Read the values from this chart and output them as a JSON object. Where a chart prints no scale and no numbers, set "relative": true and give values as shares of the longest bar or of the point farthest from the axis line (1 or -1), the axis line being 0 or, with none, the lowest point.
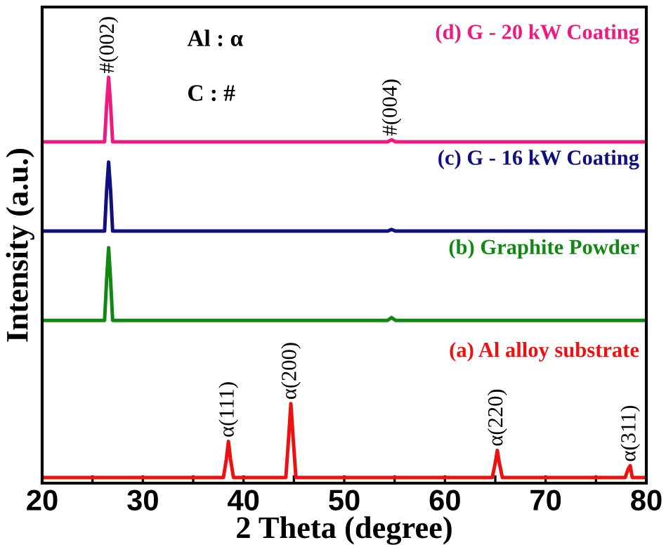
{
  "chart_data": {
    "type": "line",
    "relative": true,
    "xlabel": "2 Theta (degree)",
    "ylabel": "Intensity (a.u.)",
    "xlim": [
      20,
      80
    ],
    "xticks": [
      20,
      {
        "value": 25,
        "label": null
      },
      30,
      {
        "value": 35,
        "label": null
      },
      40,
      {
        "value": 45,
        "label": null
      },
      50,
      {
        "value": 55,
        "label": null
      },
      60,
      {
        "value": 65,
        "label": null
      },
      70,
      {
        "value": 75,
        "label": null
      },
      80
    ],
    "tick_labels": "x",
    "grid": false,
    "legend": false,
    "marker": "none",
    "line_style": "solid",
    "series": [
      {
        "name": "(a) Al alloy substrate",
        "color": "#ee1111",
        "x": [
          20,
          38.0,
          38.3,
          38.5,
          38.7,
          39.0,
          44.2,
          44.5,
          44.7,
          44.9,
          45.2,
          64.7,
          65.0,
          65.2,
          65.4,
          65.7,
          77.9,
          78.2,
          78.4,
          78.6,
          80
        ],
        "values": [
          0.014,
          0.014,
          0.06,
          0.103,
          0.06,
          0.014,
          0.014,
          0.12,
          0.196,
          0.12,
          0.014,
          0.014,
          0.05,
          0.081,
          0.05,
          0.014,
          0.014,
          0.035,
          0.043,
          0.014,
          0.014
        ]
      },
      {
        "name": "(b) Graphite Powder",
        "color": "#118811",
        "x": [
          20,
          26.2,
          26.4,
          26.6,
          26.8,
          27.0,
          54.3,
          54.7,
          55.1,
          80
        ],
        "values": [
          0.401,
          0.401,
          0.5,
          0.58,
          0.5,
          0.401,
          0.401,
          0.408,
          0.401,
          0.401
        ]
      },
      {
        "name": "(c) G - 16 kW Coating",
        "color": "#101080",
        "x": [
          20,
          26.2,
          26.4,
          26.6,
          26.8,
          27.0,
          54.3,
          54.7,
          55.1,
          80
        ],
        "values": [
          0.621,
          0.621,
          0.72,
          0.791,
          0.72,
          0.621,
          0.621,
          0.625,
          0.621,
          0.621
        ]
      },
      {
        "name": "(d) G - 20 kW Coating",
        "color": "#ee1a80",
        "x": [
          20,
          26.2,
          26.4,
          26.6,
          26.8,
          27.0,
          54.3,
          54.7,
          55.1,
          80
        ],
        "values": [
          0.841,
          0.841,
          0.93,
          1.0,
          0.93,
          0.841,
          0.841,
          0.846,
          0.841,
          0.841
        ]
      }
    ],
    "annotations": [
      "Al : α",
      "C : #",
      {
        "text": "#(002)",
        "x": 26.6,
        "y": 1.0
      },
      {
        "text": "#(004)",
        "x": 54.7,
        "y": 0.846
      },
      {
        "text": "α(111)",
        "x": 38.5,
        "y": 0.103
      },
      {
        "text": "α(200)",
        "x": 44.7,
        "y": 0.196
      },
      {
        "text": "α(220)",
        "x": 65.2,
        "y": 0.081
      },
      {
        "text": "α(311)",
        "x": 78.4,
        "y": 0.043
      }
    ]
  }
}
